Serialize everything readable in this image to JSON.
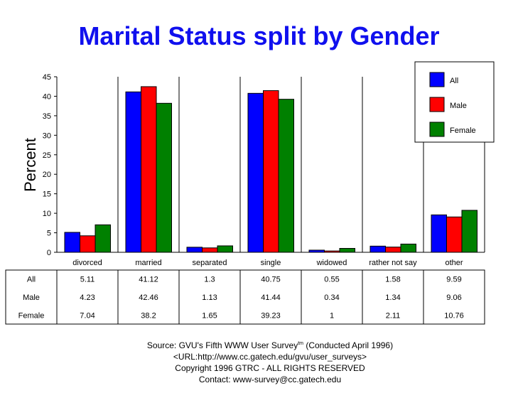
{
  "chart_data": {
    "type": "bar",
    "title": "Marital Status split by Gender",
    "ylabel": "Percent",
    "xlabel": "",
    "ylim": [
      0,
      45
    ],
    "yticks": [
      0,
      5,
      10,
      15,
      20,
      25,
      30,
      35,
      40,
      45
    ],
    "grid": "vertical separators",
    "legend_position": "top-right",
    "categories": [
      "divorced",
      "married",
      "separated",
      "single",
      "widowed",
      "rather not say",
      "other"
    ],
    "series": [
      {
        "name": "All",
        "color": "#0000ff",
        "values": [
          5.11,
          41.12,
          1.3,
          40.75,
          0.55,
          1.58,
          9.59
        ],
        "labels": [
          "5.11",
          "41.12",
          "1.3",
          "40.75",
          "0.55",
          "1.58",
          "9.59"
        ]
      },
      {
        "name": "Male",
        "color": "#ff0000",
        "values": [
          4.23,
          42.46,
          1.13,
          41.44,
          0.34,
          1.34,
          9.06
        ],
        "labels": [
          "4.23",
          "42.46",
          "1.13",
          "41.44",
          "0.34",
          "1.34",
          "9.06"
        ]
      },
      {
        "name": "Female",
        "color": "#008000",
        "values": [
          7.04,
          38.2,
          1.65,
          39.23,
          1,
          2.11,
          10.76
        ],
        "labels": [
          "7.04",
          "38.2",
          "1.65",
          "39.23",
          "1",
          "2.11",
          "10.76"
        ]
      }
    ]
  },
  "footer": {
    "source": "Source: GVU's Fifth WWW User Survey",
    "tm": "tm",
    "conducted": " (Conducted April 1996)",
    "url": "<URL:http://www.cc.gatech.edu/gvu/user_surveys>",
    "copyright": "Copyright 1996 GTRC -  ALL RIGHTS RESERVED",
    "contact": "Contact: www-survey@cc.gatech.edu"
  }
}
